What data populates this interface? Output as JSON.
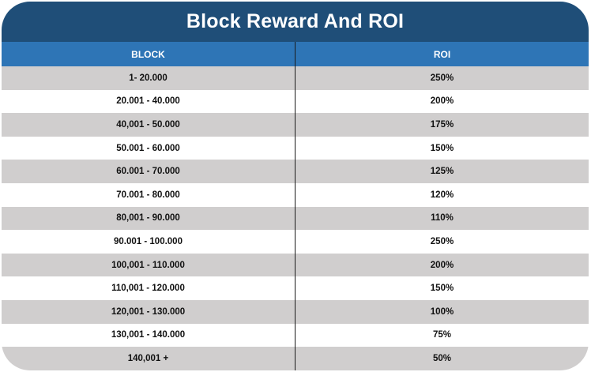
{
  "title": "Block Reward And ROI",
  "headers": {
    "block": "BLOCK",
    "roi": "ROI"
  },
  "rows": [
    {
      "block": "1- 20.000",
      "roi": "250%"
    },
    {
      "block": "20.001 - 40.000",
      "roi": "200%"
    },
    {
      "block": "40,001 - 50.000",
      "roi": "175%"
    },
    {
      "block": "50.001 - 60.000",
      "roi": "150%"
    },
    {
      "block": "60.001 - 70.000",
      "roi": "125%"
    },
    {
      "block": "70.001 - 80.000",
      "roi": "120%"
    },
    {
      "block": "80,001 - 90.000",
      "roi": "110%"
    },
    {
      "block": "90.001 - 100.000",
      "roi": "250%"
    },
    {
      "block": "100,001 - 110.000",
      "roi": "200%"
    },
    {
      "block": "110,001 - 120.000",
      "roi": "150%"
    },
    {
      "block": "120,001 - 130.000",
      "roi": "100%"
    },
    {
      "block": "130,001 - 140.000",
      "roi": "75%"
    },
    {
      "block": "140,001 +",
      "roi": "50%"
    }
  ],
  "colors": {
    "title_bg": "#1f4e78",
    "header_bg": "#2e75b6",
    "row_shaded": "#d0cece",
    "row_plain": "#ffffff"
  }
}
